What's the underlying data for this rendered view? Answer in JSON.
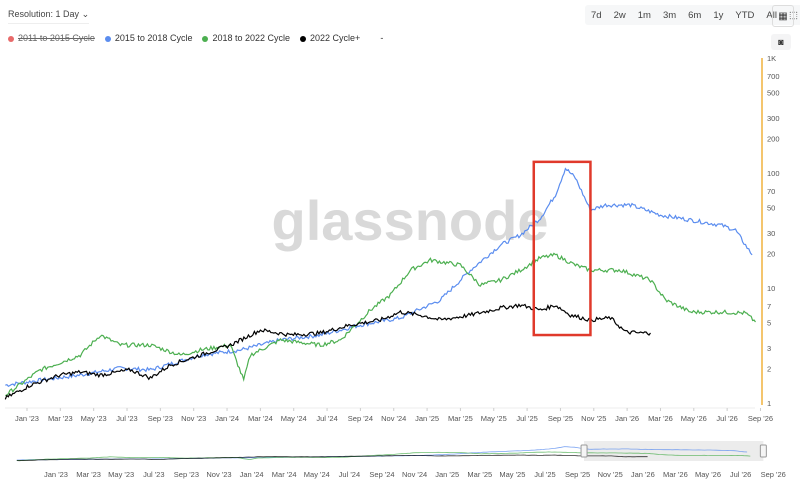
{
  "resolution_label": "Resolution: 1 Day",
  "legend": [
    {
      "label": "2011 to 2015 Cycle",
      "color": "#e86a6a",
      "hidden": true
    },
    {
      "label": "2015 to 2018 Cycle",
      "color": "#5b8def",
      "hidden": false
    },
    {
      "label": "2018 to 2022 Cycle",
      "color": "#4caf50",
      "hidden": false
    },
    {
      "label": "2022 Cycle+",
      "color": "#000000",
      "hidden": false
    }
  ],
  "legend_extra": "-",
  "ranges": [
    "7d",
    "2w",
    "1m",
    "3m",
    "6m",
    "1y",
    "YTD",
    "All"
  ],
  "watermark": "glassnode",
  "chart_data": {
    "type": "line",
    "x_unit": "months since Jan '23",
    "y_scale": "log",
    "ylim": [
      1,
      1000
    ],
    "y_ticks": [
      "1",
      "2",
      "3",
      "5",
      "7",
      "10",
      "20",
      "30",
      "50",
      "70",
      "100",
      "200",
      "300",
      "500",
      "700",
      "1K"
    ],
    "y_tick_values": [
      1,
      2,
      3,
      5,
      7,
      10,
      20,
      30,
      50,
      70,
      100,
      200,
      300,
      500,
      700,
      1000
    ],
    "x_ticks": [
      "Jan '23",
      "Mar '23",
      "May '23",
      "Jul '23",
      "Sep '23",
      "Nov '23",
      "Jan '24",
      "Mar '24",
      "May '24",
      "Jul '24",
      "Sep '24",
      "Nov '24",
      "Jan '25",
      "Mar '25",
      "May '25",
      "Jul '25",
      "Sep '25",
      "Nov '25",
      "Jan '26",
      "Mar '26",
      "May '26",
      "Jul '26",
      "Sep '26"
    ],
    "highlight_box": {
      "x_range": [
        30.4,
        33.8
      ],
      "y_range": [
        3.9,
        125
      ],
      "color": "#e0392b"
    },
    "series": [
      {
        "name": "2015 to 2018 Cycle",
        "color": "#5b8def",
        "points": [
          [
            -1.3,
            1.43
          ],
          [
            0.8,
            1.58
          ],
          [
            3.2,
            1.75
          ],
          [
            5.6,
            2.01
          ],
          [
            7.4,
            1.94
          ],
          [
            10.4,
            2.61
          ],
          [
            12.8,
            2.89
          ],
          [
            15.2,
            3.53
          ],
          [
            17.6,
            3.9
          ],
          [
            20,
            4.77
          ],
          [
            22.4,
            5.49
          ],
          [
            24.8,
            7.86
          ],
          [
            26.6,
            14.3
          ],
          [
            28.4,
            23.6
          ],
          [
            29.6,
            28.9
          ],
          [
            30.8,
            40.6
          ],
          [
            31.7,
            64.5
          ],
          [
            32.3,
            110
          ],
          [
            32.9,
            90.5
          ],
          [
            33.8,
            47.6
          ],
          [
            34.7,
            52.7
          ],
          [
            36.2,
            52.7
          ],
          [
            38,
            43.1
          ],
          [
            39.8,
            39
          ],
          [
            41.6,
            35.3
          ],
          [
            42.5,
            31.9
          ],
          [
            43.1,
            23.6
          ],
          [
            43.5,
            19.4
          ]
        ]
      },
      {
        "name": "2018 to 2022 Cycle",
        "color": "#4caf50",
        "points": [
          [
            -1.3,
            1.17
          ],
          [
            0.8,
            1.94
          ],
          [
            3.2,
            2.61
          ],
          [
            4.4,
            3.9
          ],
          [
            5.6,
            3.19
          ],
          [
            7.4,
            3.19
          ],
          [
            9.2,
            2.61
          ],
          [
            10.4,
            2.89
          ],
          [
            12.2,
            3.19
          ],
          [
            13,
            1.58
          ],
          [
            13.4,
            2.61
          ],
          [
            15.2,
            3.53
          ],
          [
            17.6,
            3.19
          ],
          [
            18.8,
            3.53
          ],
          [
            20.6,
            6.43
          ],
          [
            21.8,
            8.7
          ],
          [
            23,
            14.3
          ],
          [
            24.2,
            17.5
          ],
          [
            26,
            15.8
          ],
          [
            27.2,
            10.6
          ],
          [
            28.4,
            11.7
          ],
          [
            29.6,
            14.3
          ],
          [
            30.8,
            18.3
          ],
          [
            31.7,
            19.4
          ],
          [
            32.9,
            15.8
          ],
          [
            33.8,
            14.3
          ],
          [
            35.6,
            14.3
          ],
          [
            37.4,
            11.7
          ],
          [
            38.3,
            7.86
          ],
          [
            39.8,
            6.18
          ],
          [
            41.6,
            6.18
          ],
          [
            43.1,
            6.06
          ],
          [
            43.7,
            5.06
          ]
        ]
      },
      {
        "name": "2022 Cycle+",
        "color": "#000000",
        "points": [
          [
            -1.3,
            1.1
          ],
          [
            0.2,
            1.43
          ],
          [
            2,
            1.75
          ],
          [
            3.2,
            1.86
          ],
          [
            4.4,
            1.75
          ],
          [
            6.2,
            1.94
          ],
          [
            7.4,
            1.65
          ],
          [
            8.6,
            2.14
          ],
          [
            10.4,
            2.61
          ],
          [
            12.2,
            3.19
          ],
          [
            14,
            4.31
          ],
          [
            15.8,
            3.9
          ],
          [
            17.6,
            4.06
          ],
          [
            19.4,
            4.77
          ],
          [
            21.2,
            5.27
          ],
          [
            22.4,
            6.18
          ],
          [
            23.6,
            5.82
          ],
          [
            24.8,
            5.27
          ],
          [
            26.6,
            5.82
          ],
          [
            28.4,
            6.7
          ],
          [
            29.6,
            7.1
          ],
          [
            30.8,
            6.43
          ],
          [
            31.7,
            7.1
          ],
          [
            32.6,
            5.82
          ],
          [
            33.8,
            5.27
          ],
          [
            35,
            5.49
          ],
          [
            35.9,
            4.14
          ],
          [
            36.8,
            4.06
          ],
          [
            37.4,
            4.06
          ]
        ]
      }
    ]
  }
}
